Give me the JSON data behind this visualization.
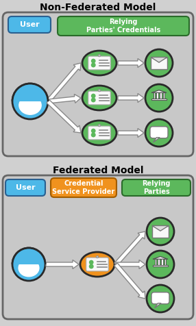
{
  "title_nonfed": "Non-Federated Model",
  "title_fed": "Federated Model",
  "bg_color": "#d0d0d0",
  "panel_color": "#c8c8c8",
  "blue_color": "#4db8e8",
  "green_color": "#5cb85c",
  "orange_color": "#f0921e",
  "white": "#ffffff",
  "dark": "#333333",
  "label_user": "User",
  "label_relying": "Relying\nParties' Credentials",
  "label_csp": "Credential\nService Provider",
  "label_relying_fed": "Relying\nParties",
  "figw": 2.86,
  "figh": 4.76,
  "dpi": 100
}
